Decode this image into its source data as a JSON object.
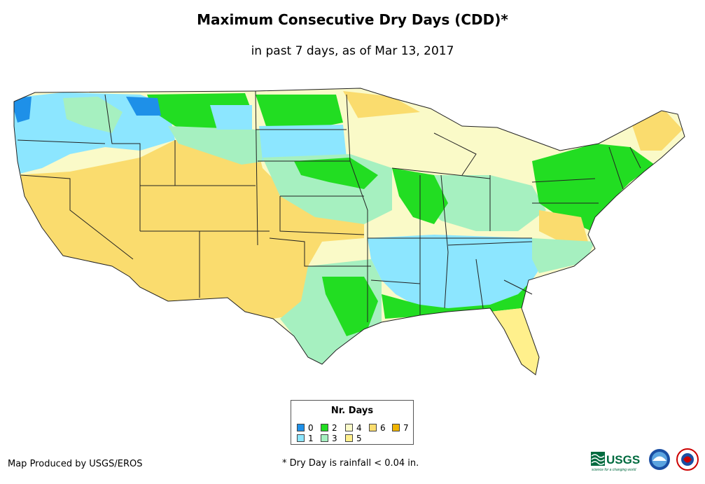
{
  "title": "Maximum Consecutive Dry Days (CDD)*",
  "subtitle": "in past 7 days, as of Mar 13, 2017",
  "legend": {
    "title": "Nr. Days",
    "items": [
      {
        "label": "0",
        "color": "#1e90e8"
      },
      {
        "label": "1",
        "color": "#8ce6ff"
      },
      {
        "label": "2",
        "color": "#22dd22"
      },
      {
        "label": "3",
        "color": "#a6f0c0"
      },
      {
        "label": "4",
        "color": "#fafac8"
      },
      {
        "label": "5",
        "color": "#fff08c"
      },
      {
        "label": "6",
        "color": "#fadc6e"
      },
      {
        "label": "7",
        "color": "#f0b400"
      }
    ]
  },
  "credit": "Map Produced by USGS/EROS",
  "footnote": "* Dry Day is rainfall < 0.04 in.",
  "logos": {
    "usgs": "USGS",
    "usgs_tagline": "science for a changing world"
  }
}
